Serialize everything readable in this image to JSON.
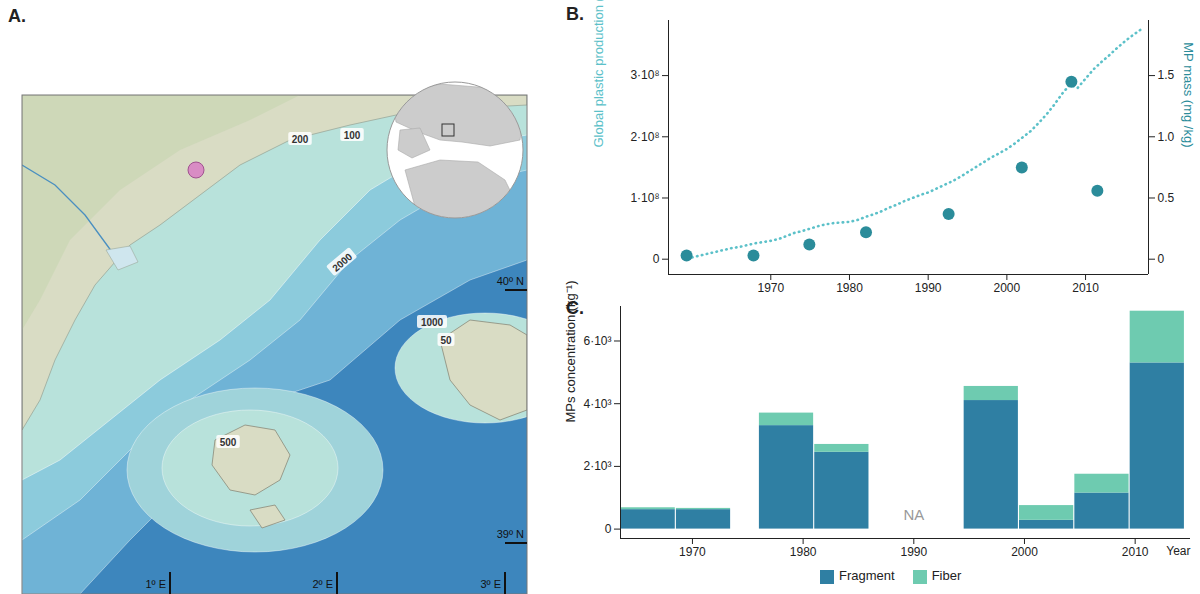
{
  "map": {
    "title": "A.",
    "contour_labels": [
      "200",
      "100",
      "2000",
      "1000",
      "50",
      "500"
    ],
    "latitude_labels": [
      "40º N",
      "39º N"
    ],
    "longitude_labels": [
      "1º E",
      "2º E",
      "3º E"
    ]
  },
  "chart_data": [
    {
      "type": "line",
      "title": "B.",
      "xlim": [
        1957,
        2018
      ],
      "xticks": [
        1970,
        1980,
        1990,
        2000,
        2010
      ],
      "ylim": [
        -25000000,
        390000000
      ],
      "yticks": [
        0,
        {
          "value": 100000000,
          "label": "1·10⁸"
        },
        {
          "value": 200000000,
          "label": "2·10⁸"
        },
        {
          "value": 300000000,
          "label": "3·10⁸"
        }
      ],
      "ylabel": "Global plastic production (tons)",
      "y2lim": [
        -0.125,
        1.95
      ],
      "y2ticks": [
        0,
        0.5,
        {
          "value": 1,
          "label": "1.0"
        },
        1.5
      ],
      "y2label": "MP mass (mg /kg)",
      "series": [
        {
          "type": "line",
          "line_style": "dotted",
          "color": "#5cc1c9",
          "x": [
            1960,
            1961,
            1962,
            1963,
            1964,
            1965,
            1966,
            1967,
            1968,
            1969,
            1970,
            1971,
            1972,
            1973,
            1974,
            1975,
            1976,
            1977,
            1978,
            1979,
            1980,
            1981,
            1982,
            1983,
            1984,
            1985,
            1986,
            1987,
            1988,
            1989,
            1990,
            1991,
            1992,
            1993,
            1994,
            1995,
            1996,
            1997,
            1998,
            1999,
            2000,
            2001,
            2002,
            2003,
            2004,
            2005,
            2006,
            2007,
            2008,
            2009,
            2010,
            2011,
            2012,
            2013,
            2014,
            2015,
            2016,
            2017
          ],
          "values": [
            3000000,
            6000000,
            9000000,
            12000000,
            15000000,
            18000000,
            20000000,
            23000000,
            26000000,
            28000000,
            30000000,
            33000000,
            38000000,
            43000000,
            46000000,
            50000000,
            54000000,
            57000000,
            59000000,
            60000000,
            61000000,
            64000000,
            69000000,
            73000000,
            78000000,
            84000000,
            89000000,
            95000000,
            100000000,
            105000000,
            109000000,
            115000000,
            121000000,
            127000000,
            134000000,
            142000000,
            150000000,
            158000000,
            166000000,
            173000000,
            180000000,
            189000000,
            199000000,
            209000000,
            222000000,
            236000000,
            252000000,
            270000000,
            285000000,
            280000000,
            295000000,
            310000000,
            322000000,
            333000000,
            345000000,
            356000000,
            366000000,
            375000000
          ]
        },
        {
          "type": "scatter",
          "marker": "circle",
          "axis": "y2",
          "color": "#2b8c9a",
          "x": [
            1959.3,
            1967.8,
            1974.9,
            1982.1,
            1992.6,
            2001.9,
            2008.2,
            2011.5
          ],
          "values": [
            0.03,
            0.03,
            0.12,
            0.22,
            0.37,
            0.75,
            1.45,
            0.56
          ]
        }
      ]
    },
    {
      "type": "bar",
      "title": "C.",
      "stacked": true,
      "legend": "bottom",
      "x": [
        1966,
        1971,
        1978.5,
        1983.5,
        1990,
        1997,
        2002,
        2007,
        2012
      ],
      "xlim": [
        1963.5,
        2015
      ],
      "xticks": [
        1970,
        1980,
        1990,
        2000,
        2010
      ],
      "xlabel": "Year",
      "ylim": [
        -300,
        7100
      ],
      "yticks": [
        0,
        {
          "value": 2000,
          "label": "2·10³"
        },
        {
          "value": 4000,
          "label": "4·10³"
        },
        {
          "value": 6000,
          "label": "6·10³"
        }
      ],
      "ylabel": "MPs concentration (kg⁻¹)",
      "annotations": [
        {
          "x": 1990,
          "y": 300,
          "text": "NA"
        }
      ],
      "series": [
        {
          "name": "Fragment",
          "color": "#2f7fa3",
          "values": [
            620,
            620,
            3300,
            2450,
            null,
            4100,
            280,
            1150,
            5300
          ]
        },
        {
          "name": "Fiber",
          "color": "#6ecbb0",
          "values": [
            60,
            40,
            400,
            250,
            null,
            450,
            470,
            600,
            1650
          ]
        }
      ]
    }
  ]
}
